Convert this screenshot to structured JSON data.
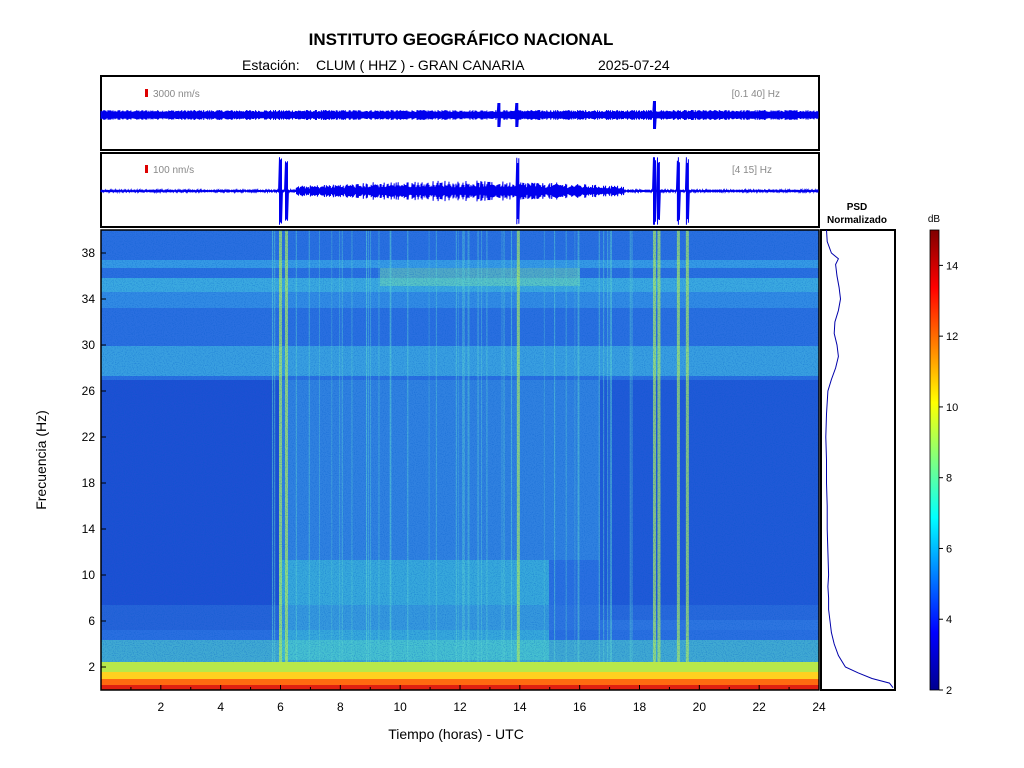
{
  "header": {
    "title": "INSTITUTO GEOGRÁFICO NACIONAL",
    "station_label": "Estación:",
    "station": "CLUM ( HHZ ) - GRAN CANARIA",
    "date": "2025-07-24"
  },
  "chart_data": [
    {
      "type": "line",
      "panel": "waveform-broadband",
      "scale_label": "3000 nm/s",
      "filter_label": "[0.1 40] Hz",
      "scale_bar_color": "#dd0000",
      "line_color": "#0000ee",
      "x_range_hours": [
        0,
        24
      ]
    },
    {
      "type": "line",
      "panel": "waveform-filtered",
      "scale_label": "100 nm/s",
      "filter_label": "[4 15] Hz",
      "scale_bar_color": "#dd0000",
      "line_color": "#0000ee",
      "x_range_hours": [
        0,
        24
      ],
      "events_hours": [
        6.0,
        6.2,
        13.95,
        18.5,
        18.65,
        19.3,
        19.6
      ]
    },
    {
      "type": "heatmap",
      "panel": "spectrogram",
      "xlabel": "Tiempo (horas) - UTC",
      "ylabel": "Frecuencia  (Hz)",
      "xlim": [
        0,
        24
      ],
      "ylim": [
        0,
        40
      ],
      "xticks": [
        2,
        4,
        6,
        8,
        10,
        12,
        14,
        16,
        18,
        20,
        22,
        24
      ],
      "yticks": [
        2,
        6,
        10,
        14,
        18,
        22,
        26,
        30,
        34,
        38
      ],
      "colormap": "jet",
      "colorbar_label": "dB",
      "colorbar_range": [
        2,
        15
      ],
      "colorbar_ticks": [
        2,
        4,
        6,
        8,
        10,
        12,
        14
      ]
    },
    {
      "type": "line",
      "panel": "psd",
      "title_line1": "PSD",
      "title_line2": "Normalizado",
      "ylim": [
        0,
        40
      ],
      "line_color": "#0000aa",
      "freq": [
        0.2,
        0.6,
        1,
        1.5,
        2,
        3,
        4,
        5,
        6,
        7,
        8,
        9,
        10,
        12,
        14,
        16,
        18,
        20,
        22,
        24,
        26,
        27,
        28,
        29,
        30,
        31,
        32,
        33,
        34,
        35,
        36,
        37,
        37.5,
        38,
        39,
        40
      ],
      "psd": [
        1.0,
        0.95,
        0.7,
        0.5,
        0.32,
        0.22,
        0.16,
        0.12,
        0.1,
        0.08,
        0.08,
        0.07,
        0.08,
        0.07,
        0.06,
        0.06,
        0.05,
        0.05,
        0.04,
        0.05,
        0.07,
        0.12,
        0.18,
        0.22,
        0.2,
        0.16,
        0.17,
        0.22,
        0.25,
        0.23,
        0.2,
        0.18,
        0.22,
        0.12,
        0.06,
        0.05
      ]
    }
  ]
}
